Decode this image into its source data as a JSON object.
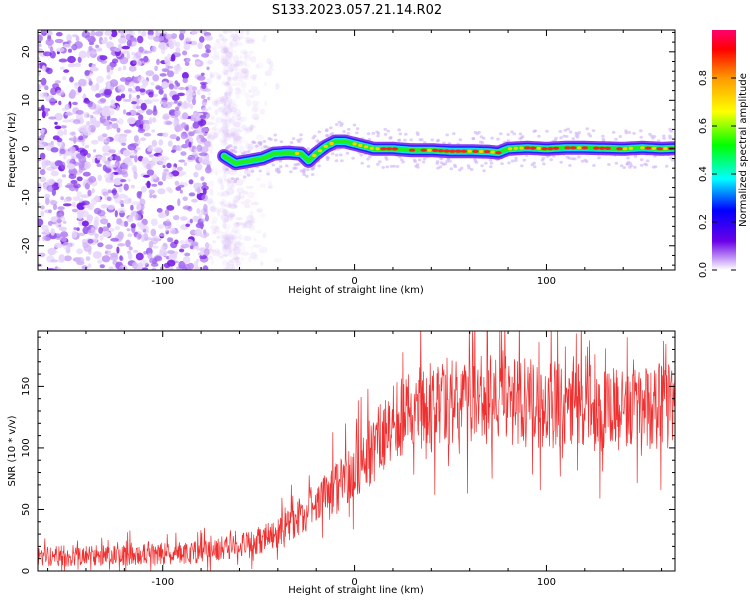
{
  "title": "S133.2023.057.21.14.R02",
  "chart_data": [
    {
      "type": "heatmap",
      "xlabel": "Height of straight line (km)",
      "ylabel": "Frequency (Hz)",
      "xlim": [
        -165,
        167
      ],
      "ylim": [
        -25,
        24.5
      ],
      "xticks": [
        -100,
        0,
        100
      ],
      "yticks": [
        -20,
        -10,
        0,
        10,
        20
      ],
      "colorbar": {
        "label": "Normalized spectral amplitude",
        "range": [
          0,
          1
        ],
        "ticks": [
          "0.0",
          "0.2",
          "0.4",
          "0.6",
          "0.8"
        ]
      },
      "noise_region_x": [
        -165,
        -68
      ],
      "ridge": {
        "x": [
          -68,
          -62,
          -55,
          -48,
          -42,
          -35,
          -28,
          -24,
          -20,
          -15,
          -10,
          -5,
          0,
          5,
          10,
          20,
          30,
          40,
          50,
          60,
          70,
          75,
          80,
          90,
          100,
          110,
          120,
          130,
          140,
          150,
          160,
          167
        ],
        "frequency_hz": [
          -1.5,
          -3,
          -2.5,
          -2,
          -1,
          -0.8,
          -1,
          -2.5,
          -1,
          0.5,
          1.5,
          1.5,
          1,
          0.5,
          0,
          0,
          -0.3,
          -0.3,
          -0.5,
          -0.5,
          -0.6,
          -0.8,
          0,
          0.2,
          0,
          0.2,
          0.2,
          0.1,
          0,
          0.2,
          0,
          0.1
        ]
      },
      "grid": false
    },
    {
      "type": "line",
      "xlabel": "Height of straight line (km)",
      "ylabel": "SNR (10 * v/v)",
      "xlim": [
        -165,
        167
      ],
      "ylim": [
        0,
        195
      ],
      "xticks": [
        -100,
        0,
        100
      ],
      "yticks": [
        0,
        50,
        100,
        150
      ],
      "color": "#f03030",
      "trend": {
        "x": [
          -165,
          -120,
          -80,
          -60,
          -40,
          -20,
          0,
          10,
          20,
          30,
          40,
          60,
          80,
          100,
          130,
          167
        ],
        "y": [
          12,
          13,
          15,
          20,
          30,
          55,
          80,
          100,
          120,
          130,
          135,
          140,
          138,
          135,
          132,
          135
        ]
      },
      "grid": false
    }
  ]
}
